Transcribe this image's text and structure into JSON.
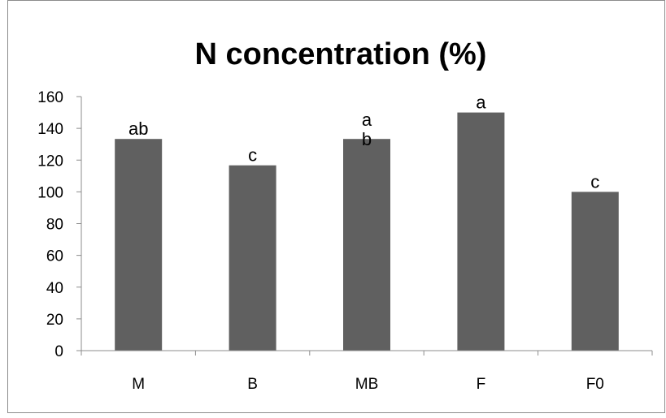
{
  "chart_data": {
    "type": "bar",
    "title": "N concentration (%)",
    "categories": [
      "M",
      "B",
      "MB",
      "F",
      "F0"
    ],
    "values": [
      133.3,
      116.7,
      133.3,
      150,
      100
    ],
    "labels": [
      "ab",
      "c",
      "a\nb",
      "a",
      "c"
    ],
    "ylim": [
      0,
      160
    ],
    "yticks": [
      0,
      20,
      40,
      60,
      80,
      100,
      120,
      140,
      160
    ],
    "xlabel": "",
    "ylabel": "",
    "grid": false,
    "legend": "none",
    "bar_color": "#606060"
  }
}
